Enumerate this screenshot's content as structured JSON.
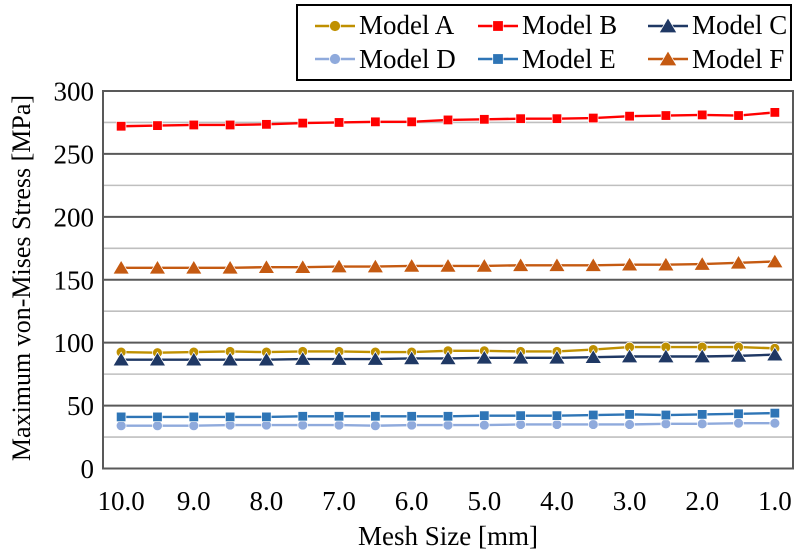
{
  "chart_data": {
    "type": "line",
    "title": "",
    "xlabel": "Mesh Size [mm]",
    "ylabel": "Maximum von-Mises Stress [MPa]",
    "x": [
      10.0,
      9.5,
      9.0,
      8.5,
      8.0,
      7.5,
      7.0,
      6.5,
      6.0,
      5.5,
      5.0,
      4.5,
      4.0,
      3.5,
      3.0,
      2.5,
      2.0,
      1.5,
      1.0
    ],
    "xticks": [
      "10.0",
      "9.0",
      "8.0",
      "7.0",
      "6.0",
      "5.0",
      "4.0",
      "3.0",
      "2.0",
      "1.0"
    ],
    "yticks": [
      "0",
      "50",
      "100",
      "150",
      "200",
      "250",
      "300"
    ],
    "ylim": [
      0,
      300
    ],
    "x_direction": "decreasing",
    "grid": {
      "major_step": 50,
      "minor_step": 25,
      "major_color": "#595959",
      "minor_color": "#BFBFBF"
    },
    "legend_position": "top",
    "series": [
      {
        "name": "Model A",
        "color": "#BF9000",
        "marker": "circle",
        "values": [
          92.5,
          92,
          92.5,
          93,
          92.5,
          93,
          93,
          92.5,
          92.5,
          93.5,
          93.5,
          93,
          93,
          94.5,
          96.5,
          96.5,
          96.5,
          96.5,
          95.5
        ]
      },
      {
        "name": "Model B",
        "color": "#FF0000",
        "marker": "square",
        "values": [
          272,
          272.5,
          273,
          273,
          273.5,
          274.5,
          275,
          275.5,
          275.5,
          277,
          277.5,
          278,
          278,
          278.5,
          280,
          280.5,
          281,
          280.5,
          283
        ]
      },
      {
        "name": "Model C",
        "color": "#1F3864",
        "marker": "triangle",
        "values": [
          86.5,
          86.5,
          86.5,
          86.5,
          86.5,
          87,
          87,
          87,
          87.5,
          87.5,
          88,
          88,
          88,
          88.5,
          89,
          89,
          89,
          89.5,
          90.5
        ]
      },
      {
        "name": "Model D",
        "color": "#8FAADC",
        "marker": "circle",
        "values": [
          34,
          34,
          34,
          34.5,
          34.5,
          34.5,
          34.5,
          34,
          34.5,
          34.5,
          34.5,
          35,
          35,
          35,
          35,
          35.5,
          35.5,
          36,
          36
        ]
      },
      {
        "name": "Model E",
        "color": "#2E75B6",
        "marker": "square",
        "values": [
          41,
          41,
          41,
          41,
          41,
          41.5,
          41.5,
          41.5,
          41.5,
          41.5,
          42,
          42,
          42,
          42.5,
          43,
          42.5,
          43,
          43.5,
          44
        ]
      },
      {
        "name": "Model F",
        "color": "#C55A11",
        "marker": "triangle",
        "values": [
          159.5,
          159.5,
          159.5,
          159.5,
          160,
          160,
          160.5,
          160.5,
          161,
          161,
          161,
          161.5,
          161.5,
          161.5,
          162,
          162,
          162.5,
          163.5,
          164.5
        ]
      }
    ]
  }
}
